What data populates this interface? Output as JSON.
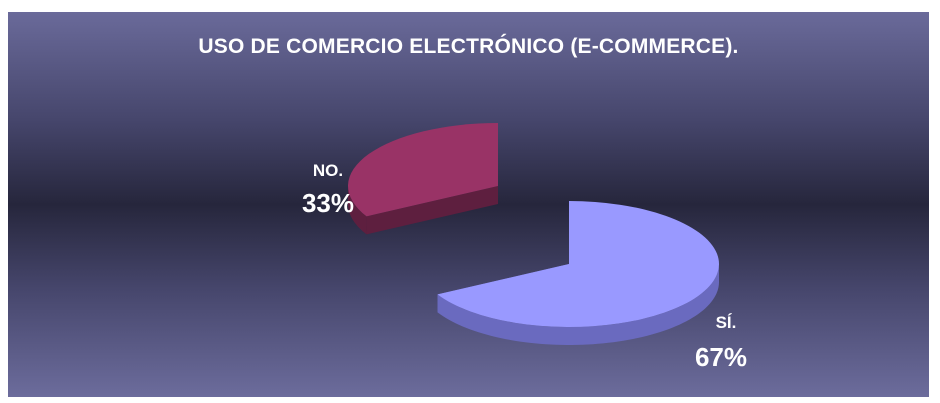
{
  "chart_data": {
    "type": "pie",
    "title": "USO DE COMERCIO ELECTRÓNICO (E-COMMERCE).",
    "categories": [
      "SÍ.",
      "NO."
    ],
    "values": [
      67,
      33
    ],
    "value_labels": [
      "67%",
      "33%"
    ],
    "colors": [
      "#9999ff",
      "#993366"
    ],
    "side_colors": [
      "#6a6abf",
      "#5e1f3f"
    ],
    "background_color": "#2a2a40",
    "exploded": true,
    "three_d": true,
    "legend": "none"
  }
}
